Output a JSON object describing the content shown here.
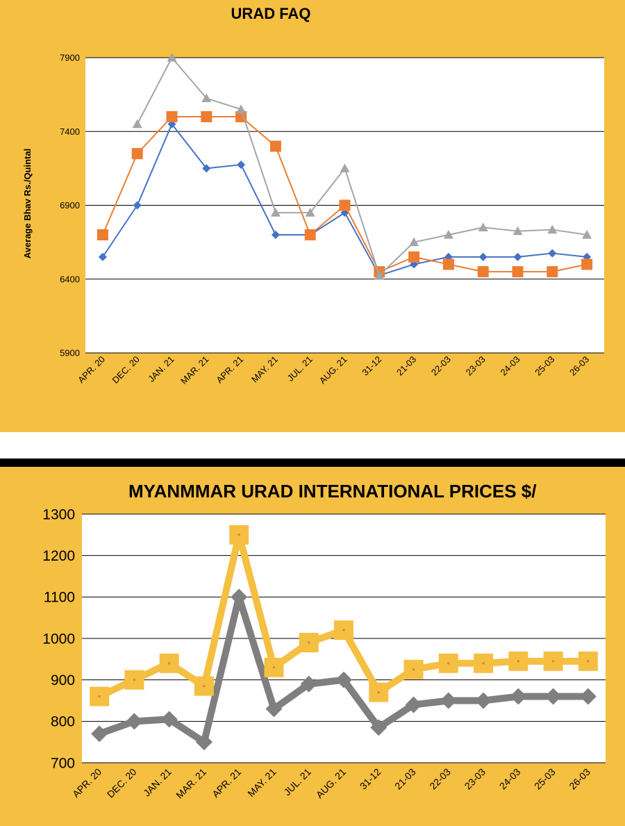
{
  "chart_data": [
    {
      "type": "line",
      "title": "URAD FAQ",
      "ylabel": "Average Bhav Rs./Quintal",
      "xlabel": "",
      "categories": [
        "APR. 20",
        "DEC. 20",
        "JAN. 21",
        "MAR. 21",
        "APR. 21",
        "MAY. 21",
        "JUL. 21",
        "AUG. 21",
        "31-12",
        "21-03",
        "22-03",
        "23-03",
        "24-03",
        "25-03",
        "26-03"
      ],
      "ylim": [
        5900,
        7900
      ],
      "yticks": [
        5900,
        6400,
        6900,
        7400,
        7900
      ],
      "grid": true,
      "legend": "none",
      "series": [
        {
          "marker": "diamond",
          "color": "#4472c4",
          "values": [
            6550,
            6900,
            7450,
            7150,
            7175,
            6700,
            6700,
            6850,
            6425,
            6500,
            6550,
            6550,
            6550,
            6575,
            6550
          ]
        },
        {
          "marker": "square",
          "color": "#ed7d31",
          "values": [
            6700,
            7250,
            7500,
            7500,
            7500,
            7300,
            6700,
            6900,
            6450,
            6550,
            6500,
            6450,
            6450,
            6450,
            6500
          ]
        },
        {
          "marker": "triangle",
          "color": "#a5a5a5",
          "values": [
            null,
            7450,
            7900,
            7625,
            7550,
            6850,
            6850,
            7150,
            6425,
            6650,
            6700,
            6750,
            6725,
            6735,
            6700
          ]
        }
      ]
    },
    {
      "type": "line",
      "title": "MYANMMAR URAD INTERNATIONAL PRICES $/",
      "xlabel": "",
      "ylabel": "",
      "categories": [
        "APR. 20",
        "DEC. 20",
        "JAN. 21",
        "MAR. 21",
        "APR. 21",
        "MAY. 21",
        "JUL. 21",
        "AUG. 21",
        "31-12",
        "21-03",
        "22-03",
        "23-03",
        "24-03",
        "25-03",
        "26-03"
      ],
      "ylim": [
        700,
        1300
      ],
      "yticks": [
        700,
        800,
        900,
        1000,
        1100,
        1200,
        1300
      ],
      "grid": true,
      "legend": "none",
      "series": [
        {
          "marker": "diamond",
          "color": "#7f7f7f",
          "values": [
            770,
            800,
            805,
            750,
            1100,
            830,
            890,
            900,
            785,
            840,
            850,
            850,
            860,
            860,
            860
          ]
        },
        {
          "marker": "square",
          "color": "#f5bf42",
          "values": [
            860,
            900,
            940,
            885,
            1250,
            930,
            990,
            1020,
            870,
            925,
            940,
            940,
            945,
            945,
            945
          ]
        }
      ]
    }
  ]
}
